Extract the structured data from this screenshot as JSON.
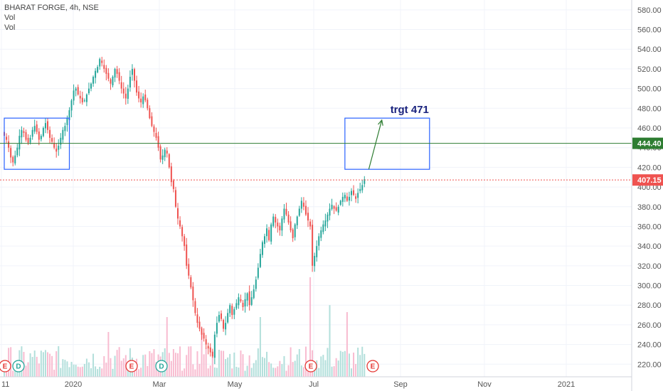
{
  "header": {
    "title": "BHARAT FORGE, 4h, NSE",
    "indicators": [
      "Vol",
      "Vol"
    ]
  },
  "chart_data": {
    "type": "candlestick",
    "symbol": "BHARAT FORGE",
    "interval": "4h",
    "exchange": "NSE",
    "y_axis": {
      "min": 200,
      "max": 590,
      "ticks": [
        220,
        240,
        260,
        280,
        300,
        320,
        340,
        360,
        380,
        400,
        420,
        440,
        460,
        480,
        500,
        520,
        540,
        560,
        580
      ],
      "tick_labels": [
        "220.00",
        "240.00",
        "260.00",
        "280.00",
        "300.00",
        "320.00",
        "340.00",
        "360.00",
        "380.00",
        "400.00",
        "420.00",
        "440.00",
        "460.00",
        "480.00",
        "500.00",
        "520.00",
        "540.00",
        "560.00",
        "580.00"
      ]
    },
    "x_axis": {
      "labels": [
        "11",
        "2020",
        "Mar",
        "May",
        "Jul",
        "Sep",
        "Nov",
        "2021"
      ]
    },
    "closes": [
      452,
      448,
      440,
      430,
      425,
      432,
      440,
      452,
      458,
      455,
      448,
      445,
      450,
      458,
      462,
      456,
      448,
      452,
      460,
      465,
      458,
      450,
      446,
      440,
      436,
      442,
      450,
      458,
      462,
      470,
      478,
      488,
      498,
      500,
      494,
      490,
      486,
      488,
      494,
      500,
      505,
      512,
      518,
      522,
      530,
      526,
      520,
      515,
      510,
      505,
      512,
      520,
      515,
      508,
      500,
      495,
      490,
      500,
      512,
      520,
      508,
      496,
      490,
      486,
      492,
      488,
      480,
      470,
      462,
      456,
      450,
      440,
      428,
      432,
      438,
      434,
      420,
      405,
      398,
      380,
      368,
      360,
      350,
      340,
      320,
      310,
      298,
      285,
      272,
      262,
      256,
      250,
      246,
      240,
      236,
      232,
      228,
      250,
      262,
      270,
      266,
      256,
      262,
      272,
      280,
      270,
      276,
      282,
      288,
      284,
      278,
      286,
      292,
      280,
      288,
      296,
      306,
      318,
      332,
      344,
      350,
      358,
      346,
      362,
      370,
      364,
      360,
      356,
      368,
      378,
      372,
      364,
      356,
      348,
      362,
      370,
      378,
      386,
      380,
      372,
      366,
      360,
      320,
      330,
      340,
      350,
      356,
      362,
      366,
      372,
      378,
      382,
      378,
      376,
      380,
      386,
      390,
      392,
      386,
      390,
      396,
      392,
      388,
      394,
      398,
      402,
      408
    ],
    "volume_spikes": [
      {
        "index": 141,
        "value": 1.0
      },
      {
        "index": 150,
        "value": 0.72
      },
      {
        "index": 75,
        "value": 0.6
      },
      {
        "index": 118,
        "value": 0.6
      },
      {
        "index": 158,
        "value": 0.65
      },
      {
        "index": 91,
        "value": 0.5
      },
      {
        "index": 48,
        "value": 0.45
      }
    ],
    "horizontal_lines": [
      {
        "label": "444.40",
        "value": 444.4,
        "color": "#2e7d32",
        "style": "solid"
      },
      {
        "label": "407.15",
        "value": 407.15,
        "color": "#ef5350",
        "style": "dotted"
      }
    ],
    "rectangles": [
      {
        "from_index": 0,
        "to_index": 30,
        "top": 470,
        "bottom": 418,
        "color": "#2962ff"
      },
      {
        "from_index": 157,
        "to_index": 196,
        "top": 470,
        "bottom": 418,
        "color": "#2962ff"
      }
    ],
    "arrow": {
      "from_index": 168,
      "from_value": 418,
      "to_index": 174,
      "to_value": 468,
      "color": "#2e7d32"
    },
    "annotation": {
      "text": "trgt 471",
      "color": "#1a237e"
    },
    "events": [
      {
        "letter": "E",
        "type": "earnings",
        "color": "#e53935"
      },
      {
        "letter": "D",
        "type": "dividend",
        "color": "#26a69a"
      },
      {
        "letter": "E",
        "type": "earnings",
        "color": "#e53935"
      },
      {
        "letter": "D",
        "type": "dividend",
        "color": "#26a69a"
      },
      {
        "letter": "E",
        "type": "earnings",
        "color": "#e53935"
      },
      {
        "letter": "E",
        "type": "earnings",
        "color": "#e53935"
      }
    ],
    "colors": {
      "up": "#26a69a",
      "down": "#ef5350",
      "vol_up": "#b2dfdb",
      "vol_down": "#f8bbd0"
    }
  }
}
